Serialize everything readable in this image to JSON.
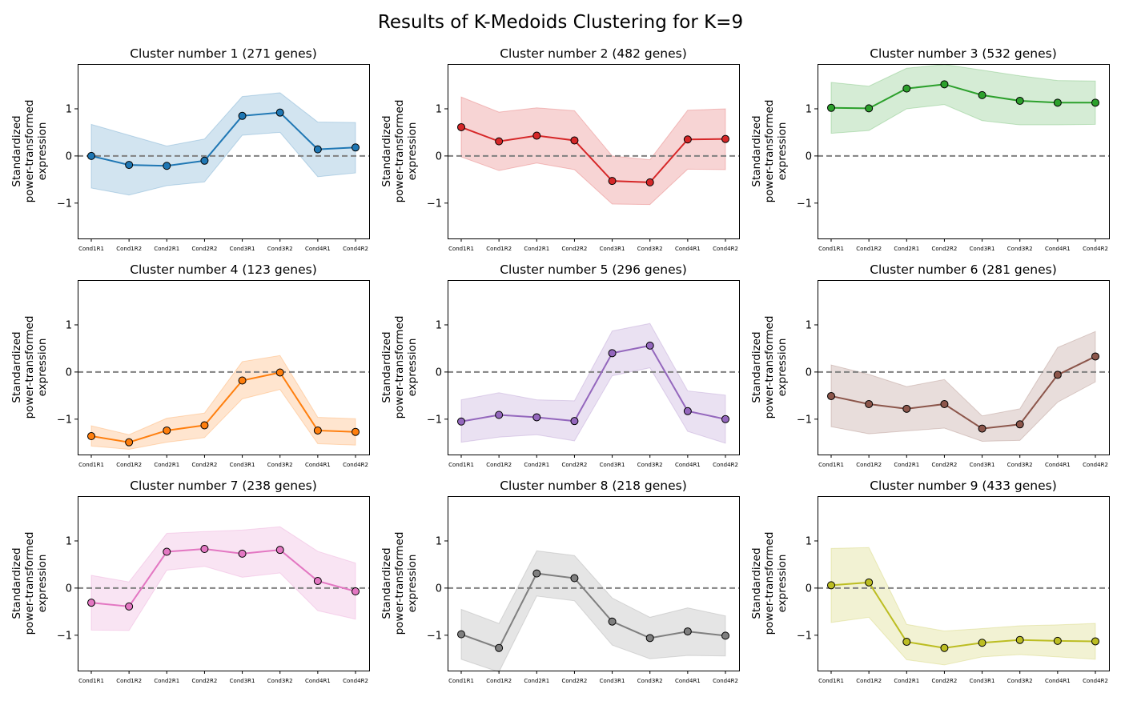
{
  "chart_data": {
    "type": "line",
    "title": "Results of K-Medoids Clustering for K=9",
    "ylabel_lines": [
      "Standardized",
      "power-transformed",
      "expression"
    ],
    "categories": [
      "Cond1R1",
      "Cond1R2",
      "Cond2R1",
      "Cond2R2",
      "Cond3R1",
      "Cond3R2",
      "Cond4R1",
      "Cond4R2"
    ],
    "ylim": [
      -1.75,
      1.95
    ],
    "yticks": [
      -1,
      0,
      1
    ],
    "yticklabels": [
      "−1",
      "0",
      "1"
    ],
    "reference_line": 0,
    "grid": false,
    "legend": "none",
    "panels": [
      {
        "title": "Cluster number 1 (271 genes)",
        "color": "#1f77b4",
        "values": [
          0.0,
          -0.19,
          -0.21,
          -0.1,
          0.85,
          0.92,
          0.14,
          0.18
        ],
        "upper": [
          0.67,
          0.44,
          0.21,
          0.36,
          1.26,
          1.34,
          0.72,
          0.71
        ],
        "lower": [
          -0.68,
          -0.83,
          -0.63,
          -0.55,
          0.44,
          0.5,
          -0.44,
          -0.36
        ]
      },
      {
        "title": "Cluster number 2 (482 genes)",
        "color": "#d62728",
        "values": [
          0.61,
          0.31,
          0.43,
          0.33,
          -0.53,
          -0.56,
          0.35,
          0.36
        ],
        "upper": [
          1.25,
          0.93,
          1.02,
          0.96,
          0.0,
          -0.08,
          0.97,
          1.0
        ],
        "lower": [
          -0.02,
          -0.31,
          -0.15,
          -0.29,
          -1.02,
          -1.03,
          -0.28,
          -0.29
        ]
      },
      {
        "title": "Cluster number 3 (532 genes)",
        "color": "#2ca02c",
        "values": [
          1.02,
          1.01,
          1.43,
          1.52,
          1.29,
          1.17,
          1.13,
          1.13
        ],
        "upper": [
          1.56,
          1.48,
          1.86,
          1.94,
          1.82,
          1.7,
          1.6,
          1.59
        ],
        "lower": [
          0.48,
          0.54,
          1.0,
          1.09,
          0.75,
          0.66,
          0.66,
          0.67
        ]
      },
      {
        "title": "Cluster number 4 (123 genes)",
        "color": "#ff7f0e",
        "values": [
          -1.36,
          -1.49,
          -1.24,
          -1.13,
          -0.18,
          -0.01,
          -1.24,
          -1.27
        ],
        "upper": [
          -1.14,
          -1.33,
          -0.98,
          -0.87,
          0.22,
          0.35,
          -0.96,
          -0.99
        ],
        "lower": [
          -1.57,
          -1.64,
          -1.49,
          -1.39,
          -0.57,
          -0.37,
          -1.52,
          -1.55
        ]
      },
      {
        "title": "Cluster number 5 (296 genes)",
        "color": "#9467bd",
        "values": [
          -1.05,
          -0.91,
          -0.96,
          -1.04,
          0.4,
          0.56,
          -0.83,
          -1.0
        ],
        "upper": [
          -0.59,
          -0.44,
          -0.59,
          -0.61,
          0.87,
          1.03,
          -0.4,
          -0.49
        ],
        "lower": [
          -1.49,
          -1.38,
          -1.33,
          -1.46,
          -0.08,
          0.09,
          -1.26,
          -1.51
        ]
      },
      {
        "title": "Cluster number 6 (281 genes)",
        "color": "#8c564b",
        "values": [
          -0.51,
          -0.68,
          -0.78,
          -0.68,
          -1.2,
          -1.11,
          -0.06,
          0.33
        ],
        "upper": [
          0.15,
          -0.05,
          -0.31,
          -0.16,
          -0.93,
          -0.78,
          0.52,
          0.86
        ],
        "lower": [
          -1.16,
          -1.31,
          -1.25,
          -1.19,
          -1.47,
          -1.45,
          -0.64,
          -0.21
        ]
      },
      {
        "title": "Cluster number 7 (238 genes)",
        "color": "#e377c2",
        "values": [
          -0.31,
          -0.39,
          0.77,
          0.83,
          0.73,
          0.81,
          0.15,
          -0.07
        ],
        "upper": [
          0.27,
          0.13,
          1.16,
          1.2,
          1.23,
          1.3,
          0.78,
          0.53
        ],
        "lower": [
          -0.89,
          -0.9,
          0.38,
          0.46,
          0.23,
          0.32,
          -0.48,
          -0.66
        ]
      },
      {
        "title": "Cluster number 8 (218 genes)",
        "color": "#7f7f7f",
        "values": [
          -0.98,
          -1.27,
          0.31,
          0.21,
          -0.71,
          -1.06,
          -0.92,
          -1.01
        ],
        "upper": [
          -0.45,
          -0.75,
          0.79,
          0.69,
          -0.21,
          -0.62,
          -0.42,
          -0.59
        ],
        "lower": [
          -1.51,
          -1.78,
          -0.17,
          -0.27,
          -1.21,
          -1.5,
          -1.43,
          -1.44
        ]
      },
      {
        "title": "Cluster number 9 (433 genes)",
        "color": "#bcbd22",
        "values": [
          0.06,
          0.12,
          -1.14,
          -1.27,
          -1.16,
          -1.1,
          -1.12,
          -1.13
        ],
        "upper": [
          0.84,
          0.86,
          -0.77,
          -0.91,
          -0.86,
          -0.8,
          -0.78,
          -0.75
        ],
        "lower": [
          -0.73,
          -0.62,
          -1.52,
          -1.63,
          -1.46,
          -1.41,
          -1.46,
          -1.51
        ]
      }
    ]
  }
}
